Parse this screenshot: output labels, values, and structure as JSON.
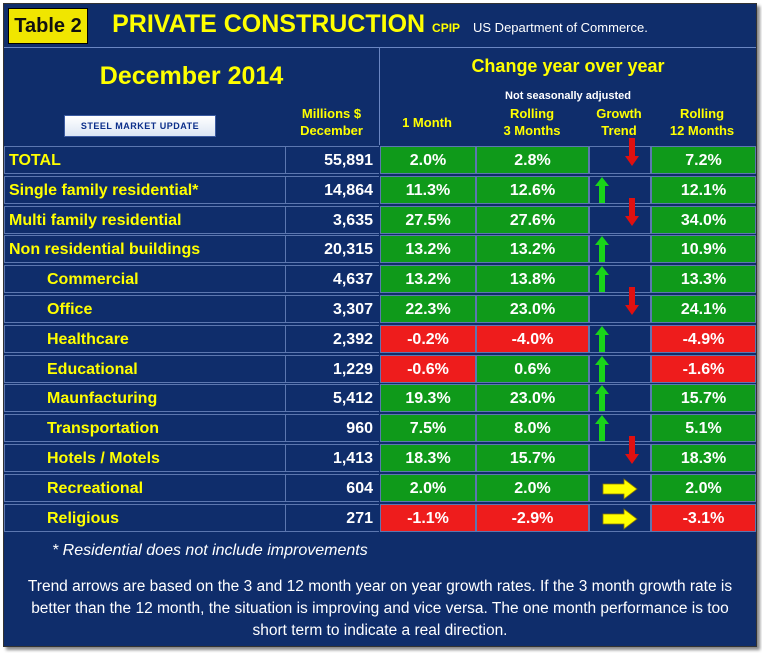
{
  "table_label": "Table 2",
  "title": "PRIVATE CONSTRUCTION",
  "title_sub": "CPIP",
  "department": "US Department of Commerce.",
  "period": "December 2014",
  "change_header": "Change year over year",
  "adjust_note": "Not seasonally adjusted",
  "logo_text": "STEEL MARKET UPDATE",
  "columns": {
    "millions_line1": "Millions $",
    "millions_line2": "December",
    "one_month": "1 Month",
    "rolling3_line1": "Rolling",
    "rolling3_line2": "3 Months",
    "trend_line1": "Growth",
    "trend_line2": "Trend",
    "rolling12_line1": "Rolling",
    "rolling12_line2": "12 Months"
  },
  "colors": {
    "positive": "#0f9a1a",
    "negative": "#ee1c1c",
    "up_arrow": "#19d419",
    "down_arrow": "#e01010",
    "flat_arrow": "#ffff00"
  },
  "rows": [
    {
      "name": "TOTAL",
      "millions": "55,891",
      "one_month": "2.0%",
      "rolling3": "2.8%",
      "trend": "down",
      "rolling12": "7.2%",
      "indent": false
    },
    {
      "name": "Single family residential*",
      "millions": "14,864",
      "one_month": "11.3%",
      "rolling3": "12.6%",
      "trend": "up",
      "rolling12": "12.1%",
      "indent": false
    },
    {
      "name": "Multi family residential",
      "millions": "3,635",
      "one_month": "27.5%",
      "rolling3": "27.6%",
      "trend": "down",
      "rolling12": "34.0%",
      "indent": false
    },
    {
      "name": "Non residential buildings",
      "millions": "20,315",
      "one_month": "13.2%",
      "rolling3": "13.2%",
      "trend": "up",
      "rolling12": "10.9%",
      "indent": false
    },
    {
      "name": "Commercial",
      "millions": "4,637",
      "one_month": "13.2%",
      "rolling3": "13.8%",
      "trend": "up",
      "rolling12": "13.3%",
      "indent": true
    },
    {
      "name": "Office",
      "millions": "3,307",
      "one_month": "22.3%",
      "rolling3": "23.0%",
      "trend": "down",
      "rolling12": "24.1%",
      "indent": true
    },
    {
      "name": "Healthcare",
      "millions": "2,392",
      "one_month": "-0.2%",
      "rolling3": "-4.0%",
      "trend": "up",
      "rolling12": "-4.9%",
      "indent": true
    },
    {
      "name": "Educational",
      "millions": "1,229",
      "one_month": "-0.6%",
      "rolling3": "0.6%",
      "trend": "up",
      "rolling12": "-1.6%",
      "indent": true
    },
    {
      "name": "Maunfacturing",
      "millions": "5,412",
      "one_month": "19.3%",
      "rolling3": "23.0%",
      "trend": "up",
      "rolling12": "15.7%",
      "indent": true
    },
    {
      "name": "Transportation",
      "millions": "960",
      "one_month": "7.5%",
      "rolling3": "8.0%",
      "trend": "up",
      "rolling12": "5.1%",
      "indent": true
    },
    {
      "name": "Hotels / Motels",
      "millions": "1,413",
      "one_month": "18.3%",
      "rolling3": "15.7%",
      "trend": "down",
      "rolling12": "18.3%",
      "indent": true
    },
    {
      "name": "Recreational",
      "millions": "604",
      "one_month": "2.0%",
      "rolling3": "2.0%",
      "trend": "flat",
      "rolling12": "2.0%",
      "indent": true
    },
    {
      "name": "Religious",
      "millions": "271",
      "one_month": "-1.1%",
      "rolling3": "-2.9%",
      "trend": "flat",
      "rolling12": "-3.1%",
      "indent": true
    }
  ],
  "footnote": "* Residential does not include improvements",
  "explanation": "Trend arrows are based on the 3 and 12 month year on year growth rates. If the 3 month growth rate is better than the 12 month, the situation is improving and vice versa. The one month performance is too short term to indicate a real direction."
}
